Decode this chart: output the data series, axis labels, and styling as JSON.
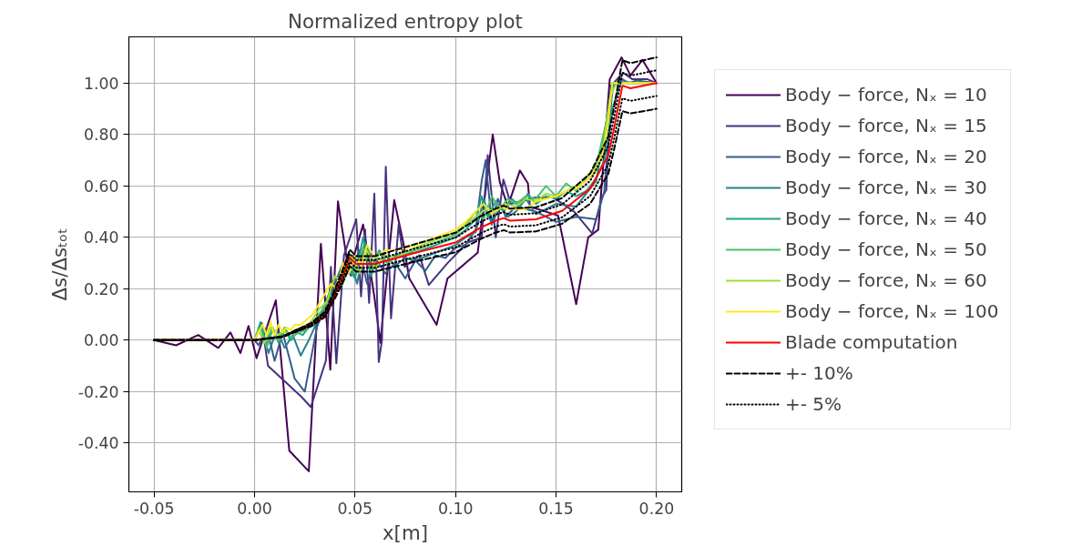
{
  "chart_data": {
    "type": "line",
    "title": "Normalized entropy plot",
    "xlabel": "x[m]",
    "ylabel": "Δs/Δsₜₒₜ",
    "xlim": [
      -0.0625,
      0.2125
    ],
    "ylim": [
      -0.59,
      1.18
    ],
    "xticks": [
      {
        "value": -0.05,
        "label": "-0.05"
      },
      {
        "value": 0,
        "label": "0.00"
      },
      {
        "value": 0.05,
        "label": "0.05"
      },
      {
        "value": 0.1,
        "label": "0.10"
      },
      {
        "value": 0.15,
        "label": "0.15"
      },
      {
        "value": 0.2,
        "label": "0.20"
      }
    ],
    "yticks": [
      {
        "value": -0.4,
        "label": "-0.40"
      },
      {
        "value": -0.2,
        "label": "-0.20"
      },
      {
        "value": 0,
        "label": "0.00"
      },
      {
        "value": 0.2,
        "label": "0.20"
      },
      {
        "value": 0.4,
        "label": "0.40"
      },
      {
        "value": 0.6,
        "label": "0.60"
      },
      {
        "value": 0.8,
        "label": "0.80"
      },
      {
        "value": 1.0,
        "label": "1.00"
      }
    ],
    "grid": true,
    "legend": "right",
    "marker": "none",
    "series": [
      {
        "name": "Body − force, Nₓ = 10",
        "color": "#440154",
        "line_style": "solid",
        "x": [
          -0.05,
          -0.039,
          -0.028,
          -0.018,
          -0.012,
          -0.007,
          -0.003,
          0.001,
          0.0106,
          0.0173,
          0.027,
          0.033,
          0.0377,
          0.0415,
          0.047,
          0.054,
          0.0596,
          0.0626,
          0.0695,
          0.074,
          0.077,
          0.0906,
          0.096,
          0.105,
          0.111,
          0.1185,
          0.122,
          0.126,
          0.132,
          0.136,
          0.137,
          0.151,
          0.16,
          0.166,
          0.171,
          0.1767,
          0.1826,
          0.187,
          0.193,
          0.2
        ],
        "values": [
          0,
          -0.02,
          0.02,
          -0.03,
          0.03,
          -0.05,
          0.055,
          -0.07,
          0.155,
          -0.43,
          -0.51,
          0.375,
          -0.115,
          0.54,
          0.26,
          0.45,
          0.17,
          -0.01,
          0.545,
          0.38,
          0.24,
          0.06,
          0.24,
          0.3,
          0.34,
          0.8,
          0.615,
          0.52,
          0.66,
          0.61,
          0.52,
          0.485,
          0.14,
          0.4,
          0.43,
          1.015,
          1.1,
          1.03,
          1.09,
          1.0
        ]
      },
      {
        "name": "Body − force, Nₓ = 15",
        "color": "#46327e",
        "line_style": "solid",
        "x": [
          -0.05,
          0,
          0.0036,
          0.0067,
          0.0233,
          0.028,
          0.0355,
          0.038,
          0.0407,
          0.0445,
          0.0506,
          0.053,
          0.055,
          0.057,
          0.0596,
          0.0618,
          0.0634,
          0.0653,
          0.0679,
          0.0717,
          0.0747,
          0.082,
          0.0867,
          0.096,
          0.106,
          0.113,
          0.116,
          0.12,
          0.1238,
          0.1275,
          0.1397,
          0.1487,
          0.159,
          0.168,
          0.1728,
          0.175,
          0.1773,
          0.1834,
          0.188,
          0.1955,
          0.2
        ],
        "values": [
          0,
          0,
          0.067,
          -0.1,
          -0.22,
          -0.26,
          -0.08,
          0.285,
          -0.09,
          0.33,
          0.47,
          0.17,
          0.43,
          0.145,
          0.57,
          -0.085,
          0.0,
          0.675,
          0.085,
          0.45,
          0.285,
          0.33,
          0.215,
          0.3,
          0.38,
          0.4,
          0.72,
          0.4,
          0.625,
          0.53,
          0.555,
          0.555,
          0.5,
          0.415,
          0.555,
          0.585,
          0.99,
          1.04,
          1.015,
          1.015,
          1.0
        ]
      },
      {
        "name": "Body − force, Nₓ = 20",
        "color": "#365c8d",
        "line_style": "solid",
        "x": [
          -0.05,
          0,
          0.002,
          0.006,
          0.01,
          0.014,
          0.02,
          0.025,
          0.031,
          0.036,
          0.04,
          0.044,
          0.048,
          0.052,
          0.056,
          0.06,
          0.065,
          0.07,
          0.075,
          0.08,
          0.085,
          0.09,
          0.095,
          0.1,
          0.105,
          0.11,
          0.113,
          0.115,
          0.118,
          0.121,
          0.125,
          0.13,
          0.14,
          0.15,
          0.16,
          0.17,
          0.174,
          0.178,
          0.182,
          0.186,
          0.19,
          0.2
        ],
        "values": [
          0,
          0,
          -0.02,
          0.05,
          -0.08,
          0.03,
          -0.15,
          -0.2,
          0.05,
          0.15,
          0.22,
          0.3,
          0.25,
          0.35,
          0.22,
          0.32,
          0.26,
          0.3,
          0.24,
          0.31,
          0.27,
          0.33,
          0.32,
          0.36,
          0.37,
          0.43,
          0.62,
          0.7,
          0.45,
          0.55,
          0.48,
          0.52,
          0.5,
          0.46,
          0.48,
          0.47,
          0.58,
          0.98,
          1.02,
          1.0,
          1.01,
          1.0
        ]
      },
      {
        "name": "Body − force, Nₓ = 30",
        "color": "#277f8e",
        "line_style": "solid",
        "x": [
          -0.05,
          0,
          0.003,
          0.007,
          0.011,
          0.015,
          0.019,
          0.023,
          0.027,
          0.031,
          0.035,
          0.039,
          0.043,
          0.047,
          0.051,
          0.055,
          0.06,
          0.065,
          0.07,
          0.075,
          0.08,
          0.09,
          0.1,
          0.105,
          0.11,
          0.114,
          0.118,
          0.122,
          0.126,
          0.13,
          0.135,
          0.14,
          0.15,
          0.16,
          0.17,
          0.175,
          0.179,
          0.183,
          0.188,
          0.2
        ],
        "values": [
          0,
          0,
          0.06,
          -0.05,
          0.04,
          -0.03,
          0.02,
          -0.06,
          0.0,
          0.07,
          0.14,
          0.22,
          0.26,
          0.33,
          0.22,
          0.38,
          0.28,
          0.33,
          0.29,
          0.32,
          0.31,
          0.34,
          0.37,
          0.4,
          0.42,
          0.55,
          0.45,
          0.52,
          0.48,
          0.5,
          0.55,
          0.49,
          0.53,
          0.52,
          0.62,
          0.85,
          1.0,
          1.01,
          1.0,
          1.0
        ]
      },
      {
        "name": "Body − force, Nₓ = 40",
        "color": "#1fa187",
        "line_style": "solid",
        "x": [
          -0.05,
          0,
          0.003,
          0.006,
          0.009,
          0.012,
          0.015,
          0.018,
          0.021,
          0.024,
          0.027,
          0.03,
          0.034,
          0.038,
          0.042,
          0.046,
          0.05,
          0.054,
          0.058,
          0.062,
          0.066,
          0.07,
          0.08,
          0.09,
          0.1,
          0.105,
          0.11,
          0.113,
          0.116,
          0.12,
          0.124,
          0.128,
          0.132,
          0.136,
          0.14,
          0.145,
          0.15,
          0.155,
          0.16,
          0.165,
          0.17,
          0.174,
          0.178,
          0.182,
          0.186,
          0.2
        ],
        "values": [
          0,
          0,
          0.07,
          -0.02,
          0.05,
          -0.01,
          0.04,
          0.0,
          0.03,
          0.02,
          0.05,
          0.06,
          0.12,
          0.18,
          0.2,
          0.29,
          0.24,
          0.4,
          0.25,
          0.35,
          0.3,
          0.33,
          0.34,
          0.37,
          0.4,
          0.43,
          0.47,
          0.56,
          0.48,
          0.54,
          0.5,
          0.55,
          0.52,
          0.57,
          0.53,
          0.56,
          0.55,
          0.58,
          0.56,
          0.58,
          0.63,
          0.7,
          0.9,
          1.0,
          1.0,
          1.0
        ]
      },
      {
        "name": "Body − force, Nₓ = 50",
        "color": "#4ac16d",
        "line_style": "solid",
        "x": [
          -0.05,
          0,
          0.003,
          0.006,
          0.009,
          0.012,
          0.015,
          0.018,
          0.022,
          0.026,
          0.03,
          0.034,
          0.038,
          0.042,
          0.046,
          0.05,
          0.054,
          0.058,
          0.062,
          0.066,
          0.07,
          0.08,
          0.09,
          0.1,
          0.105,
          0.11,
          0.114,
          0.118,
          0.122,
          0.126,
          0.13,
          0.135,
          0.14,
          0.145,
          0.15,
          0.155,
          0.16,
          0.165,
          0.17,
          0.175,
          0.178,
          0.182,
          0.2
        ],
        "values": [
          0,
          0,
          0.05,
          -0.03,
          0.04,
          0.0,
          0.05,
          0.01,
          0.03,
          0.04,
          0.08,
          0.12,
          0.17,
          0.23,
          0.3,
          0.26,
          0.36,
          0.27,
          0.34,
          0.3,
          0.32,
          0.35,
          0.38,
          0.41,
          0.45,
          0.5,
          0.47,
          0.56,
          0.51,
          0.55,
          0.53,
          0.56,
          0.55,
          0.6,
          0.56,
          0.61,
          0.58,
          0.63,
          0.68,
          0.85,
          1.0,
          1.0,
          1.0
        ]
      },
      {
        "name": "Body − force, Nₓ = 60",
        "color": "#a0da39",
        "line_style": "solid",
        "x": [
          -0.05,
          0,
          0.002,
          0.005,
          0.008,
          0.011,
          0.014,
          0.017,
          0.02,
          0.024,
          0.028,
          0.032,
          0.036,
          0.04,
          0.044,
          0.048,
          0.052,
          0.056,
          0.06,
          0.065,
          0.07,
          0.08,
          0.09,
          0.1,
          0.105,
          0.11,
          0.115,
          0.12,
          0.125,
          0.13,
          0.135,
          0.14,
          0.145,
          0.15,
          0.155,
          0.16,
          0.165,
          0.17,
          0.174,
          0.177,
          0.18,
          0.2
        ],
        "values": [
          0,
          0,
          0.04,
          -0.01,
          0.05,
          0.01,
          0.04,
          0.02,
          0.04,
          0.05,
          0.07,
          0.12,
          0.15,
          0.25,
          0.22,
          0.33,
          0.26,
          0.35,
          0.28,
          0.33,
          0.32,
          0.36,
          0.39,
          0.42,
          0.45,
          0.48,
          0.51,
          0.5,
          0.53,
          0.52,
          0.55,
          0.54,
          0.57,
          0.56,
          0.58,
          0.6,
          0.62,
          0.66,
          0.78,
          0.95,
          1.0,
          1.0
        ]
      },
      {
        "name": "Body − force, Nₓ = 100",
        "color": "#fde725",
        "line_style": "solid",
        "x": [
          -0.05,
          0,
          0.002,
          0.004,
          0.006,
          0.008,
          0.01,
          0.012,
          0.014,
          0.016,
          0.018,
          0.02,
          0.023,
          0.026,
          0.029,
          0.032,
          0.035,
          0.038,
          0.041,
          0.044,
          0.047,
          0.05,
          0.053,
          0.056,
          0.06,
          0.065,
          0.07,
          0.08,
          0.09,
          0.1,
          0.105,
          0.11,
          0.114,
          0.118,
          0.122,
          0.126,
          0.13,
          0.135,
          0.14,
          0.145,
          0.15,
          0.155,
          0.16,
          0.165,
          0.17,
          0.173,
          0.176,
          0.178,
          0.2
        ],
        "values": [
          0,
          0,
          0.03,
          0.06,
          0.02,
          0.07,
          0.02,
          0.06,
          0.03,
          0.05,
          0.04,
          0.06,
          0.06,
          0.08,
          0.1,
          0.14,
          0.18,
          0.22,
          0.2,
          0.3,
          0.26,
          0.33,
          0.29,
          0.37,
          0.32,
          0.35,
          0.35,
          0.37,
          0.4,
          0.43,
          0.46,
          0.5,
          0.53,
          0.49,
          0.52,
          0.51,
          0.51,
          0.51,
          0.54,
          0.55,
          0.56,
          0.58,
          0.59,
          0.62,
          0.67,
          0.72,
          0.85,
          1.0,
          1.0
        ]
      },
      {
        "name": "Blade computation",
        "color": "#ff0000",
        "line_style": "solid",
        "x": [
          -0.05,
          0,
          0.014,
          0.028,
          0.035,
          0.04,
          0.045,
          0.0474,
          0.0506,
          0.06,
          0.08,
          0.1,
          0.1125,
          0.12,
          0.124,
          0.127,
          0.14,
          0.153,
          0.167,
          0.176,
          0.179,
          0.183,
          0.187,
          0.2
        ],
        "values": [
          0,
          0,
          0.014,
          0.06,
          0.1,
          0.18,
          0.27,
          0.32,
          0.297,
          0.297,
          0.34,
          0.38,
          0.438,
          0.465,
          0.475,
          0.465,
          0.47,
          0.503,
          0.59,
          0.72,
          0.83,
          0.99,
          0.98,
          1.0
        ]
      },
      {
        "name": "+- 10%",
        "color": "#000000",
        "line_style": "dashed",
        "x": [
          -0.05,
          0,
          0.014,
          0.028,
          0.035,
          0.04,
          0.045,
          0.0474,
          0.0506,
          0.06,
          0.08,
          0.1,
          0.1125,
          0.12,
          0.124,
          0.127,
          0.14,
          0.153,
          0.167,
          0.176,
          0.179,
          0.183,
          0.187,
          0.2
        ],
        "values": [
          0,
          0,
          0.015,
          0.066,
          0.11,
          0.198,
          0.297,
          0.352,
          0.327,
          0.327,
          0.374,
          0.418,
          0.482,
          0.512,
          0.523,
          0.512,
          0.517,
          0.553,
          0.649,
          0.792,
          0.913,
          1.089,
          1.078,
          1.1
        ]
      },
      {
        "color": "#000000",
        "line_style": "dashed",
        "x": [
          -0.05,
          0,
          0.014,
          0.028,
          0.035,
          0.04,
          0.045,
          0.0474,
          0.0506,
          0.06,
          0.08,
          0.1,
          0.1125,
          0.12,
          0.124,
          0.127,
          0.14,
          0.153,
          0.167,
          0.176,
          0.179,
          0.183,
          0.187,
          0.2
        ],
        "values": [
          0,
          0,
          0.013,
          0.054,
          0.09,
          0.162,
          0.243,
          0.288,
          0.267,
          0.267,
          0.306,
          0.342,
          0.394,
          0.419,
          0.428,
          0.419,
          0.423,
          0.453,
          0.531,
          0.648,
          0.747,
          0.891,
          0.882,
          0.9
        ]
      },
      {
        "name": "+- 5%",
        "color": "#000000",
        "line_style": "dotted",
        "x": [
          -0.05,
          0,
          0.014,
          0.028,
          0.035,
          0.04,
          0.045,
          0.0474,
          0.0506,
          0.06,
          0.08,
          0.1,
          0.1125,
          0.12,
          0.124,
          0.127,
          0.14,
          0.153,
          0.167,
          0.176,
          0.179,
          0.183,
          0.187,
          0.2
        ],
        "values": [
          0,
          0,
          0.015,
          0.063,
          0.105,
          0.189,
          0.284,
          0.336,
          0.312,
          0.312,
          0.357,
          0.399,
          0.46,
          0.488,
          0.499,
          0.488,
          0.494,
          0.528,
          0.62,
          0.756,
          0.872,
          1.04,
          1.029,
          1.05
        ]
      },
      {
        "color": "#000000",
        "line_style": "dotted",
        "x": [
          -0.05,
          0,
          0.014,
          0.028,
          0.035,
          0.04,
          0.045,
          0.0474,
          0.0506,
          0.06,
          0.08,
          0.1,
          0.1125,
          0.12,
          0.124,
          0.127,
          0.14,
          0.153,
          0.167,
          0.176,
          0.179,
          0.183,
          0.187,
          0.2
        ],
        "values": [
          0,
          0,
          0.013,
          0.057,
          0.095,
          0.171,
          0.257,
          0.304,
          0.282,
          0.282,
          0.323,
          0.361,
          0.416,
          0.442,
          0.451,
          0.442,
          0.447,
          0.478,
          0.561,
          0.684,
          0.789,
          0.941,
          0.931,
          0.95
        ]
      }
    ]
  }
}
